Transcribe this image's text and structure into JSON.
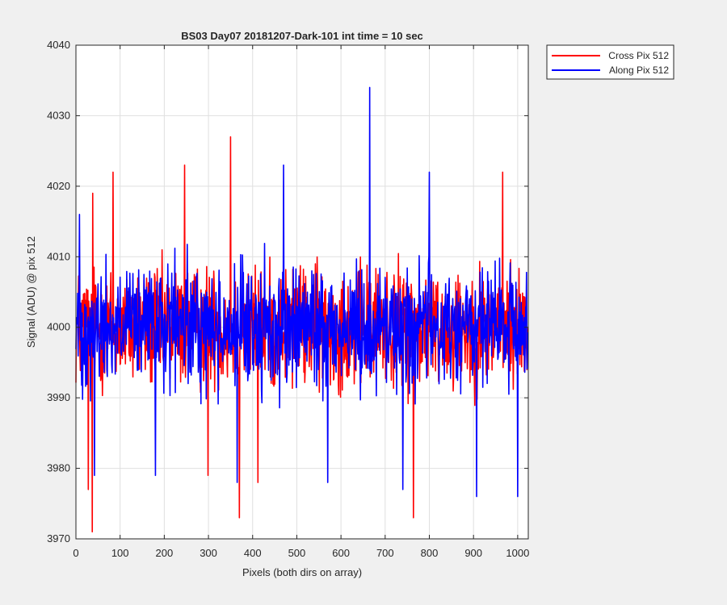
{
  "chart_data": {
    "type": "line",
    "title": "BS03 Day07 20181207-Dark-101 int time = 10 sec",
    "xlabel": "Pixels (both dirs on array)",
    "ylabel": "Signal (ADU) @ pix 512",
    "xlim": [
      0,
      1024
    ],
    "ylim": [
      3970,
      4040
    ],
    "xticks": [
      0,
      100,
      200,
      300,
      400,
      500,
      600,
      700,
      800,
      900,
      1000
    ],
    "yticks": [
      3970,
      3980,
      3990,
      4000,
      4010,
      4020,
      4030,
      4040
    ],
    "grid": true,
    "legend_position": "outside-top-right",
    "series": [
      {
        "name": "Cross Pix 512",
        "color": "#ff0000",
        "x_start": 0,
        "x_step": 1,
        "n_points": 1024,
        "center": 4000,
        "noise_halfwidth": 8,
        "extremes": [
          {
            "x": 28,
            "y": 3977
          },
          {
            "x": 37,
            "y": 3971
          },
          {
            "x": 38,
            "y": 4019
          },
          {
            "x": 84,
            "y": 4022
          },
          {
            "x": 246,
            "y": 4023
          },
          {
            "x": 299,
            "y": 3979
          },
          {
            "x": 350,
            "y": 4027
          },
          {
            "x": 370,
            "y": 3973
          },
          {
            "x": 412,
            "y": 3978
          },
          {
            "x": 764,
            "y": 3973
          },
          {
            "x": 966,
            "y": 4022
          }
        ]
      },
      {
        "name": "Along Pix 512",
        "color": "#0000ff",
        "x_start": 0,
        "x_step": 1,
        "n_points": 1024,
        "center": 4000,
        "noise_halfwidth": 8,
        "extremes": [
          {
            "x": 8,
            "y": 4016
          },
          {
            "x": 42,
            "y": 3979
          },
          {
            "x": 180,
            "y": 3979
          },
          {
            "x": 365,
            "y": 3978
          },
          {
            "x": 470,
            "y": 4023
          },
          {
            "x": 570,
            "y": 3978
          },
          {
            "x": 665,
            "y": 4034
          },
          {
            "x": 740,
            "y": 3977
          },
          {
            "x": 800,
            "y": 4022
          },
          {
            "x": 907,
            "y": 3976
          },
          {
            "x": 1000,
            "y": 3976
          }
        ]
      }
    ]
  }
}
